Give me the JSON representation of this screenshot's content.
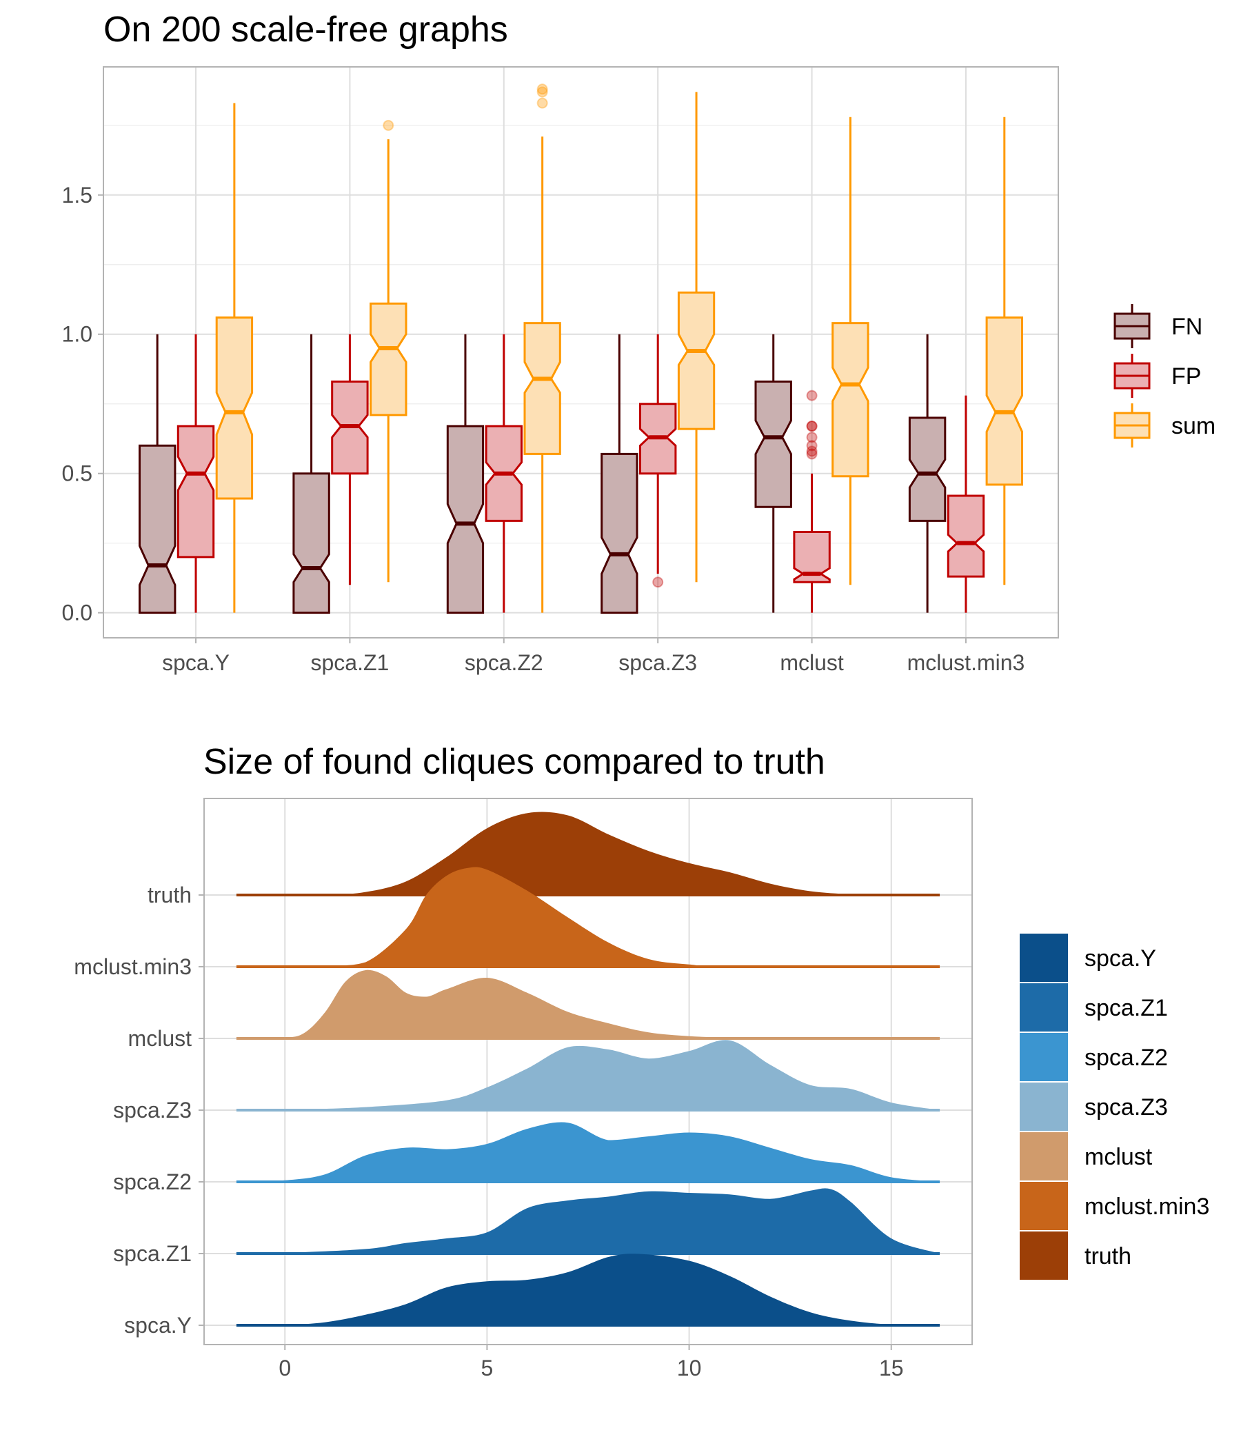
{
  "chart_data": [
    {
      "type": "box",
      "title": "On 200 scale-free graphs",
      "xlabel": "",
      "ylabel": "",
      "ylim": [
        -0.09,
        1.96
      ],
      "yticks": [
        0.0,
        0.5,
        1.0,
        1.5
      ],
      "ytick_labels": [
        "0.0",
        "0.5",
        "1.0",
        "1.5"
      ],
      "categories": [
        "spca.Y",
        "spca.Z1",
        "spca.Z2",
        "spca.Z3",
        "mclust",
        "mclust.min3"
      ],
      "grid": true,
      "notched": true,
      "legend": {
        "position": "right",
        "entries": [
          "FN",
          "FP",
          "sum"
        ]
      },
      "series": [
        {
          "name": "FN",
          "color": "#4a0000",
          "fill": "#c9b0b0",
          "boxes": [
            {
              "low": 0.0,
              "q1": 0.0,
              "median": 0.17,
              "q3": 0.6,
              "high": 1.0,
              "notch": [
                0.1,
                0.24
              ],
              "outliers": []
            },
            {
              "low": 0.0,
              "q1": 0.0,
              "median": 0.16,
              "q3": 0.5,
              "high": 1.0,
              "notch": [
                0.11,
                0.21
              ],
              "outliers": []
            },
            {
              "low": 0.0,
              "q1": 0.0,
              "median": 0.32,
              "q3": 0.67,
              "high": 1.0,
              "notch": [
                0.25,
                0.39
              ],
              "outliers": []
            },
            {
              "low": 0.0,
              "q1": 0.0,
              "median": 0.21,
              "q3": 0.57,
              "high": 1.0,
              "notch": [
                0.14,
                0.27
              ],
              "outliers": []
            },
            {
              "low": 0.0,
              "q1": 0.38,
              "median": 0.63,
              "q3": 0.83,
              "high": 1.0,
              "notch": [
                0.57,
                0.69
              ],
              "outliers": []
            },
            {
              "low": 0.0,
              "q1": 0.33,
              "median": 0.5,
              "q3": 0.7,
              "high": 1.0,
              "notch": [
                0.45,
                0.55
              ],
              "outliers": []
            }
          ]
        },
        {
          "name": "FP",
          "color": "#c00000",
          "fill": "#ebb0b3",
          "boxes": [
            {
              "low": 0.0,
              "q1": 0.2,
              "median": 0.5,
              "q3": 0.67,
              "high": 1.0,
              "notch": [
                0.44,
                0.56
              ],
              "outliers": []
            },
            {
              "low": 0.1,
              "q1": 0.5,
              "median": 0.67,
              "q3": 0.83,
              "high": 1.0,
              "notch": [
                0.63,
                0.71
              ],
              "outliers": []
            },
            {
              "low": 0.0,
              "q1": 0.33,
              "median": 0.5,
              "q3": 0.67,
              "high": 1.0,
              "notch": [
                0.46,
                0.54
              ],
              "outliers": []
            },
            {
              "low": 0.14,
              "q1": 0.5,
              "median": 0.63,
              "q3": 0.75,
              "high": 1.0,
              "notch": [
                0.6,
                0.66
              ],
              "outliers": [
                0.11
              ]
            },
            {
              "low": 0.0,
              "q1": 0.11,
              "median": 0.14,
              "q3": 0.29,
              "high": 0.5,
              "notch": [
                0.12,
                0.16
              ],
              "outliers": [
                0.57,
                0.58,
                0.6,
                0.63,
                0.67,
                0.67,
                0.78
              ]
            },
            {
              "low": 0.0,
              "q1": 0.13,
              "median": 0.25,
              "q3": 0.42,
              "high": 0.78,
              "notch": [
                0.22,
                0.28
              ],
              "outliers": []
            }
          ]
        },
        {
          "name": "sum",
          "color": "#ff9900",
          "fill": "#fde0b5",
          "boxes": [
            {
              "low": 0.0,
              "q1": 0.41,
              "median": 0.72,
              "q3": 1.06,
              "high": 1.83,
              "notch": [
                0.64,
                0.79
              ],
              "outliers": []
            },
            {
              "low": 0.11,
              "q1": 0.71,
              "median": 0.95,
              "q3": 1.11,
              "high": 1.7,
              "notch": [
                0.9,
                1.0
              ],
              "outliers": [
                1.75
              ]
            },
            {
              "low": 0.0,
              "q1": 0.57,
              "median": 0.84,
              "q3": 1.04,
              "high": 1.71,
              "notch": [
                0.79,
                0.9
              ],
              "outliers": [
                1.83,
                1.87,
                1.88
              ]
            },
            {
              "low": 0.11,
              "q1": 0.66,
              "median": 0.94,
              "q3": 1.15,
              "high": 1.87,
              "notch": [
                0.89,
                1.0
              ],
              "outliers": []
            },
            {
              "low": 0.1,
              "q1": 0.49,
              "median": 0.82,
              "q3": 1.04,
              "high": 1.78,
              "notch": [
                0.76,
                0.88
              ],
              "outliers": []
            },
            {
              "low": 0.1,
              "q1": 0.46,
              "median": 0.72,
              "q3": 1.06,
              "high": 1.78,
              "notch": [
                0.65,
                0.78
              ],
              "outliers": []
            }
          ]
        }
      ]
    },
    {
      "type": "ridgeline",
      "title": "Size of found cliques compared to truth",
      "xlabel": "",
      "ylabel": "",
      "xlim": [
        -2.0,
        17.0
      ],
      "xticks": [
        0,
        5,
        10,
        15
      ],
      "xtick_labels": [
        "0",
        "5",
        "10",
        "15"
      ],
      "x_range": [
        -1.2,
        16.2
      ],
      "grid": true,
      "legend": {
        "position": "right",
        "entries": [
          "spca.Y",
          "spca.Z1",
          "spca.Z2",
          "spca.Z3",
          "mclust",
          "mclust.min3",
          "truth"
        ]
      },
      "series": [
        {
          "name": "spca.Y",
          "color": "#0b4f8a",
          "x": [
            -1.2,
            0,
            1,
            2,
            3,
            4,
            5,
            6,
            7,
            8,
            8.8,
            10,
            11,
            12,
            13,
            14,
            15,
            16.2
          ],
          "density": [
            0,
            0.005,
            0.04,
            0.14,
            0.28,
            0.5,
            0.58,
            0.6,
            0.7,
            0.9,
            0.94,
            0.85,
            0.65,
            0.38,
            0.17,
            0.06,
            0.01,
            0
          ]
        },
        {
          "name": "spca.Z1",
          "color": "#1d6ba8",
          "x": [
            -1.2,
            0,
            2,
            3,
            4,
            5,
            6,
            7,
            8,
            9,
            10,
            11,
            12,
            13,
            13.5,
            14,
            15,
            16.2
          ],
          "density": [
            0,
            0.01,
            0.06,
            0.14,
            0.2,
            0.28,
            0.6,
            0.7,
            0.75,
            0.82,
            0.8,
            0.78,
            0.72,
            0.83,
            0.85,
            0.68,
            0.2,
            0
          ]
        },
        {
          "name": "spca.Z2",
          "color": "#3b95d0",
          "x": [
            -1.2,
            0,
            1,
            2,
            3,
            4,
            5,
            6,
            7,
            8,
            9,
            10,
            11,
            12,
            13,
            14,
            15,
            16.2
          ],
          "density": [
            0,
            0.02,
            0.1,
            0.35,
            0.45,
            0.43,
            0.5,
            0.7,
            0.78,
            0.55,
            0.6,
            0.65,
            0.6,
            0.45,
            0.3,
            0.22,
            0.06,
            0
          ]
        },
        {
          "name": "spca.Z3",
          "color": "#8ab4d0",
          "x": [
            -1.2,
            0,
            2,
            4,
            5,
            6,
            7,
            8,
            9,
            10,
            11,
            12,
            13,
            14,
            15,
            16.2
          ],
          "density": [
            0,
            0.005,
            0.04,
            0.13,
            0.3,
            0.55,
            0.83,
            0.8,
            0.68,
            0.78,
            0.92,
            0.6,
            0.33,
            0.28,
            0.1,
            0
          ]
        },
        {
          "name": "mclust",
          "color": "#d09b6c",
          "x": [
            -1.2,
            0,
            0.5,
            1,
            1.5,
            2,
            2.5,
            3,
            3.5,
            4,
            5,
            6,
            7,
            8,
            9,
            10,
            11,
            12,
            16.2
          ],
          "density": [
            0,
            0.01,
            0.08,
            0.35,
            0.75,
            0.9,
            0.82,
            0.6,
            0.55,
            0.65,
            0.8,
            0.6,
            0.35,
            0.2,
            0.08,
            0.03,
            0.01,
            0,
            0
          ]
        },
        {
          "name": "mclust.min3",
          "color": "#c8651a",
          "x": [
            -1.2,
            1,
            2,
            3,
            3.5,
            4,
            4.5,
            5,
            6,
            7,
            8,
            9,
            10,
            11,
            16.2
          ],
          "density": [
            0,
            0.01,
            0.06,
            0.5,
            0.95,
            1.2,
            1.3,
            1.28,
            1.0,
            0.65,
            0.32,
            0.1,
            0.03,
            0.01,
            0
          ]
        },
        {
          "name": "truth",
          "color": "#9c3f07",
          "x": [
            -1.2,
            1,
            2,
            3,
            4,
            5,
            6,
            7,
            8,
            9,
            10,
            11,
            12,
            13,
            14,
            15,
            16.2
          ],
          "density": [
            0,
            0.005,
            0.04,
            0.18,
            0.5,
            0.88,
            1.08,
            1.05,
            0.8,
            0.58,
            0.42,
            0.3,
            0.15,
            0.05,
            0.01,
            0,
            0
          ]
        }
      ]
    }
  ]
}
